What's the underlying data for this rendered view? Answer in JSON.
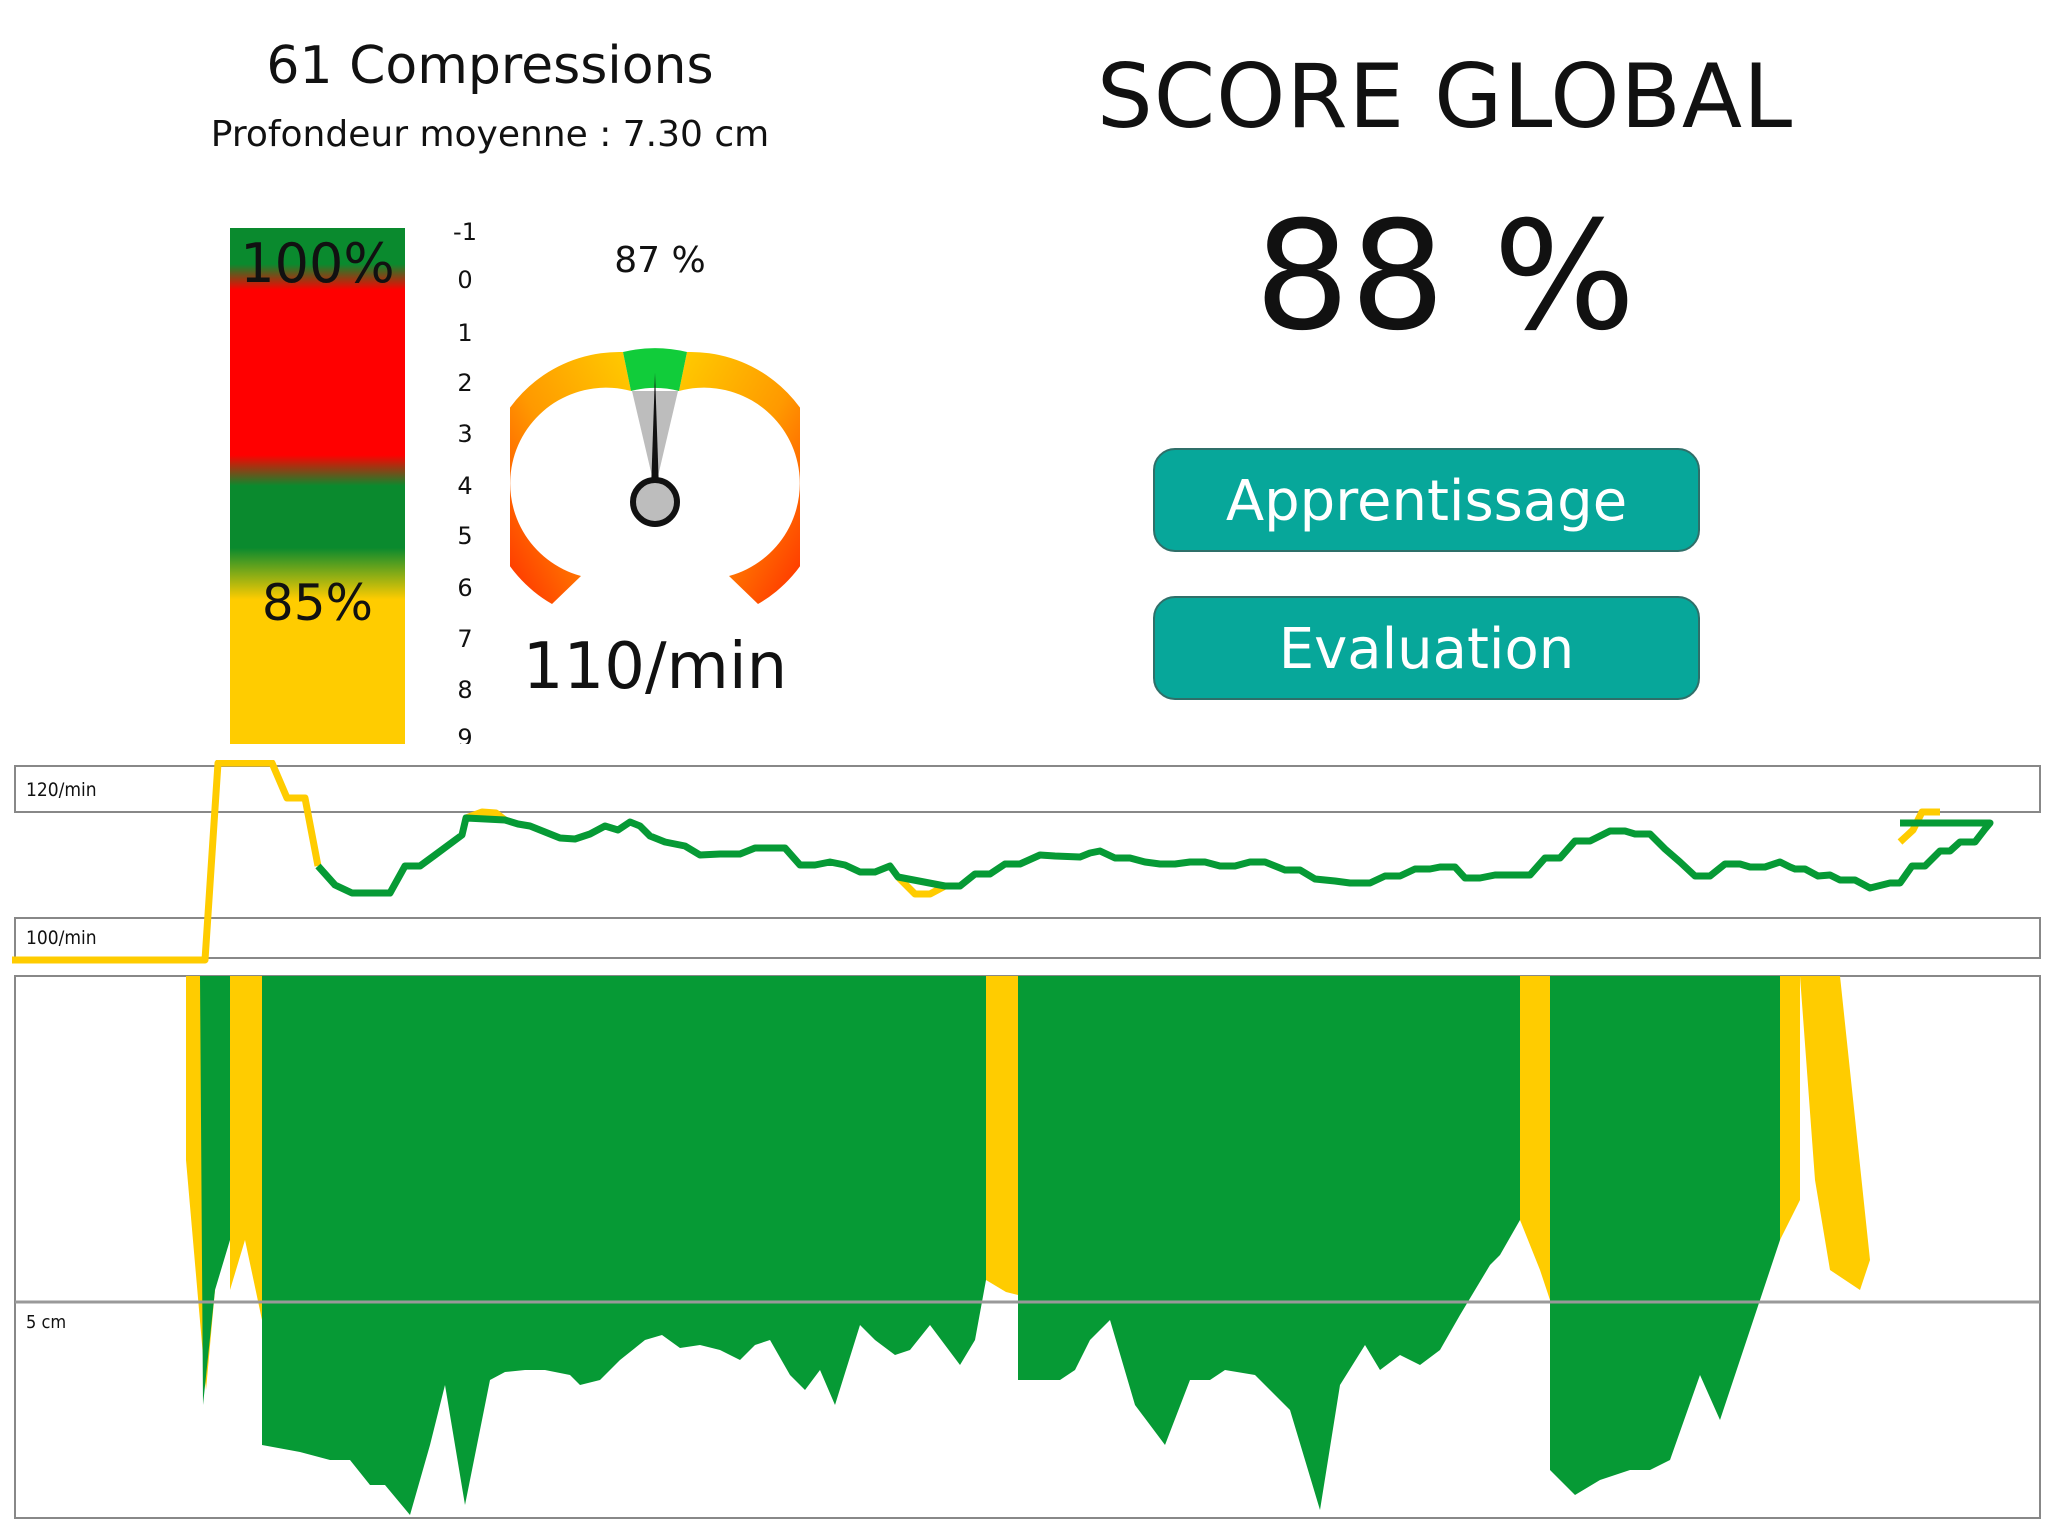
{
  "header": {
    "compressions_title": "61 Compressions",
    "depth_subtitle": "Profondeur moyenne : 7.30 cm"
  },
  "score": {
    "title": "SCORE GLOBAL",
    "value": "88 %"
  },
  "depth_bar": {
    "top_label": "100%",
    "mid_label": "85%",
    "scale": [
      "-1",
      "0",
      "1",
      "2",
      "3",
      "4",
      "5",
      "6",
      "7",
      "8",
      "9"
    ]
  },
  "gauge": {
    "percent_label": "87 %",
    "rate_label": "110/min",
    "needle_fraction": 0.5
  },
  "buttons": {
    "apprentissage": "Apprentissage",
    "evaluation": "Evaluation"
  },
  "colors": {
    "good": "#069a35",
    "warning": "#ffcc00",
    "bad": "#ff1a00",
    "button": "#07a79a"
  },
  "rate_chart": {
    "upper_label": "120/min",
    "lower_label": "100/min"
  },
  "depth_chart": {
    "reference_label": "5 cm"
  }
}
